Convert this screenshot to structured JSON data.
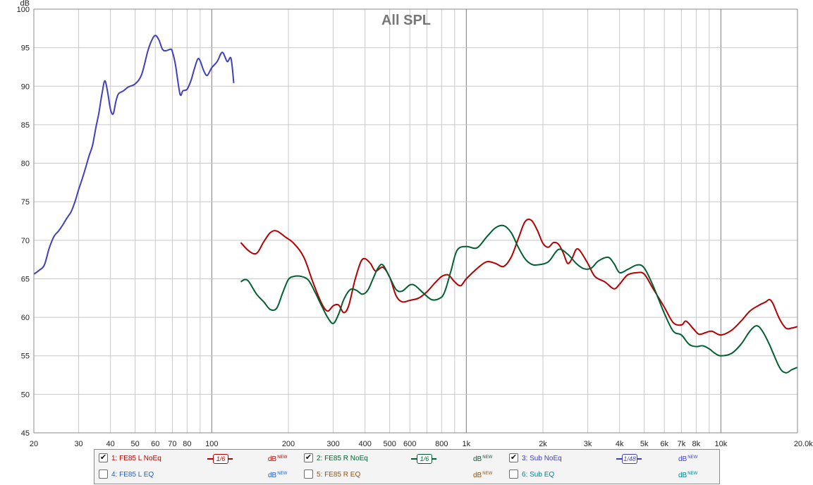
{
  "chart_data": {
    "type": "line",
    "title": "All SPL",
    "ylabel": "dB",
    "xscale": "log",
    "xlim": [
      20,
      20000
    ],
    "ylim": [
      45,
      100
    ],
    "grid": true,
    "x_ticks": [
      {
        "value": 20,
        "label": "20"
      },
      {
        "value": 30,
        "label": "30"
      },
      {
        "value": 40,
        "label": "40"
      },
      {
        "value": 50,
        "label": "50"
      },
      {
        "value": 60,
        "label": "60"
      },
      {
        "value": 70,
        "label": "70"
      },
      {
        "value": 80,
        "label": "80"
      },
      {
        "value": 100,
        "label": "100"
      },
      {
        "value": 200,
        "label": "200"
      },
      {
        "value": 300,
        "label": "300"
      },
      {
        "value": 400,
        "label": "400"
      },
      {
        "value": 500,
        "label": "500"
      },
      {
        "value": 600,
        "label": "600"
      },
      {
        "value": 800,
        "label": "800"
      },
      {
        "value": 1000,
        "label": "1k"
      },
      {
        "value": 2000,
        "label": "2k"
      },
      {
        "value": 3000,
        "label": "3k"
      },
      {
        "value": 4000,
        "label": "4k"
      },
      {
        "value": 5000,
        "label": "5k"
      },
      {
        "value": 6000,
        "label": "6k"
      },
      {
        "value": 7000,
        "label": "7k"
      },
      {
        "value": 8000,
        "label": "8k"
      },
      {
        "value": 10000,
        "label": "10k"
      },
      {
        "value": 20000,
        "label": "20.0kHz"
      }
    ],
    "y_ticks": [
      45,
      50,
      55,
      60,
      65,
      70,
      75,
      80,
      85,
      90,
      95,
      100
    ],
    "series": [
      {
        "name": "1: FE85 L NoEq",
        "color": "#b40000",
        "points": [
          [
            130,
            69.7
          ],
          [
            140,
            68.6
          ],
          [
            150,
            68.3
          ],
          [
            160,
            69.8
          ],
          [
            170,
            71.0
          ],
          [
            180,
            71.2
          ],
          [
            195,
            70.4
          ],
          [
            210,
            69.6
          ],
          [
            230,
            67.8
          ],
          [
            250,
            64.5
          ],
          [
            270,
            61.8
          ],
          [
            285,
            60.8
          ],
          [
            300,
            61.5
          ],
          [
            315,
            61.6
          ],
          [
            330,
            60.6
          ],
          [
            345,
            61.5
          ],
          [
            365,
            64.8
          ],
          [
            385,
            67.2
          ],
          [
            400,
            67.6
          ],
          [
            420,
            67.0
          ],
          [
            440,
            66.0
          ],
          [
            470,
            66.5
          ],
          [
            500,
            65.2
          ],
          [
            530,
            62.8
          ],
          [
            560,
            62.0
          ],
          [
            600,
            62.2
          ],
          [
            650,
            62.5
          ],
          [
            700,
            63.3
          ],
          [
            750,
            64.4
          ],
          [
            800,
            65.3
          ],
          [
            850,
            65.5
          ],
          [
            900,
            64.6
          ],
          [
            950,
            64.1
          ],
          [
            1000,
            65.0
          ],
          [
            1100,
            66.3
          ],
          [
            1200,
            67.2
          ],
          [
            1300,
            67.0
          ],
          [
            1400,
            66.6
          ],
          [
            1500,
            67.8
          ],
          [
            1600,
            70.2
          ],
          [
            1700,
            72.4
          ],
          [
            1800,
            72.6
          ],
          [
            1900,
            71.3
          ],
          [
            2000,
            69.6
          ],
          [
            2100,
            69.1
          ],
          [
            2200,
            69.7
          ],
          [
            2300,
            69.5
          ],
          [
            2400,
            68.4
          ],
          [
            2500,
            67.0
          ],
          [
            2600,
            67.6
          ],
          [
            2700,
            68.8
          ],
          [
            2800,
            68.6
          ],
          [
            3000,
            67.0
          ],
          [
            3200,
            65.3
          ],
          [
            3500,
            64.6
          ],
          [
            3800,
            63.7
          ],
          [
            4000,
            64.3
          ],
          [
            4300,
            65.5
          ],
          [
            4700,
            65.8
          ],
          [
            5000,
            65.6
          ],
          [
            5400,
            63.8
          ],
          [
            6000,
            61.3
          ],
          [
            6500,
            59.3
          ],
          [
            7000,
            59.0
          ],
          [
            7300,
            59.5
          ],
          [
            7800,
            58.5
          ],
          [
            8200,
            57.8
          ],
          [
            8700,
            58.0
          ],
          [
            9200,
            58.2
          ],
          [
            10000,
            57.7
          ],
          [
            11000,
            58.3
          ],
          [
            12000,
            59.5
          ],
          [
            13000,
            60.8
          ],
          [
            14000,
            61.5
          ],
          [
            15000,
            62.0
          ],
          [
            15500,
            62.3
          ],
          [
            16000,
            61.8
          ],
          [
            17000,
            59.8
          ],
          [
            18000,
            58.6
          ],
          [
            19000,
            58.6
          ],
          [
            20000,
            58.8
          ]
        ]
      },
      {
        "name": "2: FE85 R NoEq",
        "color": "#006032",
        "points": [
          [
            130,
            64.6
          ],
          [
            135,
            64.9
          ],
          [
            140,
            64.6
          ],
          [
            150,
            63.0
          ],
          [
            160,
            62.0
          ],
          [
            170,
            61.0
          ],
          [
            180,
            61.2
          ],
          [
            190,
            63.2
          ],
          [
            200,
            64.9
          ],
          [
            210,
            65.3
          ],
          [
            225,
            65.3
          ],
          [
            240,
            64.8
          ],
          [
            255,
            63.2
          ],
          [
            270,
            61.5
          ],
          [
            285,
            60.0
          ],
          [
            300,
            59.2
          ],
          [
            315,
            60.4
          ],
          [
            330,
            62.3
          ],
          [
            350,
            63.6
          ],
          [
            370,
            63.5
          ],
          [
            390,
            63.0
          ],
          [
            410,
            63.5
          ],
          [
            430,
            65.0
          ],
          [
            450,
            66.4
          ],
          [
            470,
            66.8
          ],
          [
            500,
            65.2
          ],
          [
            530,
            63.6
          ],
          [
            560,
            63.4
          ],
          [
            600,
            64.2
          ],
          [
            630,
            64.1
          ],
          [
            680,
            63.1
          ],
          [
            730,
            62.3
          ],
          [
            780,
            62.4
          ],
          [
            820,
            63.2
          ],
          [
            870,
            66.0
          ],
          [
            920,
            68.7
          ],
          [
            1000,
            69.2
          ],
          [
            1100,
            69.0
          ],
          [
            1200,
            70.4
          ],
          [
            1300,
            71.6
          ],
          [
            1400,
            71.9
          ],
          [
            1500,
            71.0
          ],
          [
            1600,
            69.1
          ],
          [
            1700,
            67.6
          ],
          [
            1800,
            66.9
          ],
          [
            1900,
            66.8
          ],
          [
            2100,
            67.2
          ],
          [
            2300,
            68.8
          ],
          [
            2500,
            68.2
          ],
          [
            2700,
            67.0
          ],
          [
            2900,
            66.3
          ],
          [
            3100,
            66.4
          ],
          [
            3300,
            67.3
          ],
          [
            3600,
            67.8
          ],
          [
            3800,
            67.0
          ],
          [
            4000,
            65.8
          ],
          [
            4300,
            66.2
          ],
          [
            4700,
            66.8
          ],
          [
            5000,
            66.4
          ],
          [
            5400,
            64.2
          ],
          [
            6000,
            60.5
          ],
          [
            6500,
            58.2
          ],
          [
            7000,
            57.7
          ],
          [
            7500,
            56.5
          ],
          [
            8000,
            56.2
          ],
          [
            8500,
            56.3
          ],
          [
            9000,
            55.9
          ],
          [
            9500,
            55.3
          ],
          [
            10000,
            55.0
          ],
          [
            11000,
            55.3
          ],
          [
            12000,
            56.5
          ],
          [
            13000,
            58.2
          ],
          [
            13800,
            58.9
          ],
          [
            14500,
            58.3
          ],
          [
            15500,
            56.5
          ],
          [
            17000,
            53.5
          ],
          [
            18000,
            52.8
          ],
          [
            19000,
            53.2
          ],
          [
            20000,
            53.5
          ]
        ]
      },
      {
        "name": "3: Sub NoEq",
        "color": "#3f3fbf",
        "points": [
          [
            20,
            65.6
          ],
          [
            21,
            66.1
          ],
          [
            22,
            66.8
          ],
          [
            23,
            69.0
          ],
          [
            24,
            70.5
          ],
          [
            25,
            71.2
          ],
          [
            26,
            72.0
          ],
          [
            27,
            72.9
          ],
          [
            28,
            73.7
          ],
          [
            29,
            75.0
          ],
          [
            30,
            76.6
          ],
          [
            31,
            78.0
          ],
          [
            32,
            79.5
          ],
          [
            33,
            81.0
          ],
          [
            34,
            82.3
          ],
          [
            35,
            84.5
          ],
          [
            36,
            86.5
          ],
          [
            37,
            88.9
          ],
          [
            38,
            90.7
          ],
          [
            39,
            89.2
          ],
          [
            40,
            87.0
          ],
          [
            41,
            86.4
          ],
          [
            42,
            88.0
          ],
          [
            43,
            89.0
          ],
          [
            45,
            89.4
          ],
          [
            47,
            89.9
          ],
          [
            50,
            90.3
          ],
          [
            53,
            91.5
          ],
          [
            56,
            94.5
          ],
          [
            58,
            95.9
          ],
          [
            60,
            96.6
          ],
          [
            62,
            96.0
          ],
          [
            64,
            94.8
          ],
          [
            66,
            94.6
          ],
          [
            69,
            94.8
          ],
          [
            70,
            94.5
          ],
          [
            72,
            92.8
          ],
          [
            75,
            89.0
          ],
          [
            77,
            89.4
          ],
          [
            80,
            89.6
          ],
          [
            83,
            90.8
          ],
          [
            85,
            92.0
          ],
          [
            88,
            93.5
          ],
          [
            90,
            93.3
          ],
          [
            93,
            92.0
          ],
          [
            96,
            91.4
          ],
          [
            100,
            92.4
          ],
          [
            105,
            93.2
          ],
          [
            110,
            94.4
          ],
          [
            115,
            93.2
          ],
          [
            119,
            93.6
          ],
          [
            122,
            90.4
          ]
        ]
      }
    ]
  },
  "legend": {
    "items": [
      {
        "label": "1: FE85 L NoEq",
        "checked": true,
        "smoothing": "1/6",
        "unit": "dB",
        "sup": "NEW",
        "color": "#b40000",
        "unit_color": "#b40000"
      },
      {
        "label": "2: FE85 R NoEq",
        "checked": true,
        "smoothing": "1/6",
        "unit": "dB",
        "sup": "NEW",
        "color": "#006032",
        "unit_color": "#006032"
      },
      {
        "label": "3: Sub NoEq",
        "checked": true,
        "smoothing": "1/48",
        "unit": "dB",
        "sup": "NEW",
        "color": "#3f3fbf",
        "unit_color": "#3f3fbf"
      },
      {
        "label": "4: FE85 L EQ",
        "checked": false,
        "unit": "dB",
        "sup": "NEW",
        "color": "#1f5fbf",
        "unit_color": "#1f5fbf"
      },
      {
        "label": "5: FE85 R EQ",
        "checked": false,
        "unit": "dB",
        "sup": "NEW",
        "color": "#9a5000",
        "unit_color": "#9a5000"
      },
      {
        "label": "6: Sub EQ",
        "checked": false,
        "unit": "dB",
        "sup": "NEW",
        "color": "#00808a",
        "unit_color": "#00808a"
      }
    ]
  }
}
